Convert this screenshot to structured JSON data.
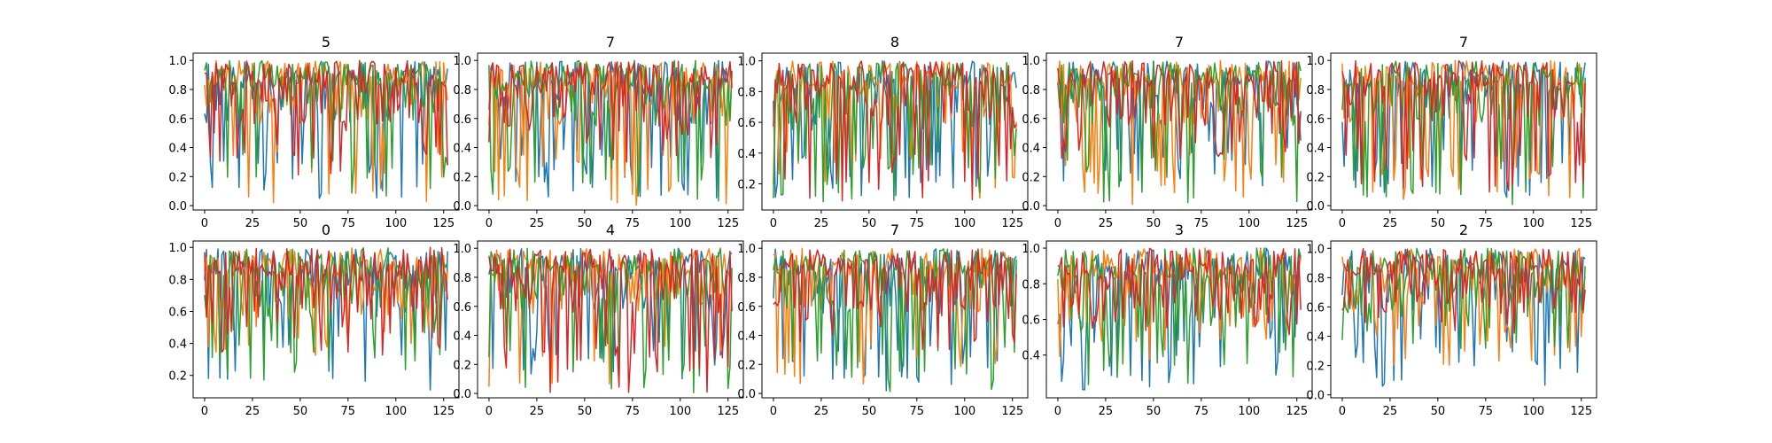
{
  "figure": {
    "background": "#ffffff"
  },
  "series_colors": [
    "#1f77b4",
    "#ff7f0e",
    "#2ca02c",
    "#d62728"
  ],
  "chart_data": [
    {
      "type": "line",
      "title": "5",
      "xlim": [
        -6,
        133
      ],
      "ylim": [
        -0.03,
        1.05
      ],
      "xticks": [
        0,
        25,
        50,
        75,
        100,
        125
      ],
      "xtick_labels": [
        "0",
        "25",
        "50",
        "75",
        "100",
        "125"
      ],
      "yticks": [
        0.0,
        0.2,
        0.4,
        0.6,
        0.8,
        1.0
      ],
      "ytick_labels": [
        "0.0",
        "0.2",
        "0.4",
        "0.6",
        "0.8",
        "1.0"
      ],
      "n_points": 128,
      "n_series": 4,
      "series_min": [
        0.05,
        0.02,
        0.02,
        0.2
      ],
      "seed": 11
    },
    {
      "type": "line",
      "title": "7",
      "xlim": [
        -6,
        133
      ],
      "ylim": [
        -0.03,
        1.05
      ],
      "xticks": [
        0,
        25,
        50,
        75,
        100,
        125
      ],
      "xtick_labels": [
        "0",
        "25",
        "50",
        "75",
        "100",
        "125"
      ],
      "yticks": [
        0.0,
        0.2,
        0.4,
        0.6,
        0.8,
        1.0
      ],
      "ytick_labels": [
        "0.0",
        "0.2",
        "0.4",
        "0.6",
        "0.8",
        "1.0"
      ],
      "n_points": 128,
      "n_series": 4,
      "series_min": [
        0.05,
        0.0,
        0.0,
        0.3
      ],
      "seed": 23
    },
    {
      "type": "line",
      "title": "8",
      "xlim": [
        -6,
        133
      ],
      "ylim": [
        0.03,
        1.05
      ],
      "xticks": [
        0,
        25,
        50,
        75,
        100,
        125
      ],
      "xtick_labels": [
        "0",
        "25",
        "50",
        "75",
        "100",
        "125"
      ],
      "yticks": [
        0.2,
        0.4,
        0.6,
        0.8,
        1.0
      ],
      "ytick_labels": [
        "0.2",
        "0.4",
        "0.6",
        "0.8",
        "1.0"
      ],
      "n_points": 128,
      "n_series": 4,
      "series_min": [
        0.1,
        0.1,
        0.08,
        0.08
      ],
      "seed": 37
    },
    {
      "type": "line",
      "title": "7",
      "xlim": [
        -6,
        133
      ],
      "ylim": [
        -0.03,
        1.05
      ],
      "xticks": [
        0,
        25,
        50,
        75,
        100,
        125
      ],
      "xtick_labels": [
        "0",
        "25",
        "50",
        "75",
        "100",
        "125"
      ],
      "yticks": [
        0.0,
        0.2,
        0.4,
        0.6,
        0.8,
        1.0
      ],
      "ytick_labels": [
        "0.0",
        "0.2",
        "0.4",
        "0.6",
        "0.8",
        "1.0"
      ],
      "n_points": 128,
      "n_series": 4,
      "series_min": [
        0.1,
        0.0,
        0.0,
        0.3
      ],
      "seed": 41
    },
    {
      "type": "line",
      "title": "7",
      "xlim": [
        -6,
        133
      ],
      "ylim": [
        -0.03,
        1.05
      ],
      "xticks": [
        0,
        25,
        50,
        75,
        100,
        125
      ],
      "xtick_labels": [
        "0",
        "25",
        "50",
        "75",
        "100",
        "125"
      ],
      "yticks": [
        0.0,
        0.2,
        0.4,
        0.6,
        0.8,
        1.0
      ],
      "ytick_labels": [
        "0.0",
        "0.2",
        "0.4",
        "0.6",
        "0.8",
        "1.0"
      ],
      "n_points": 128,
      "n_series": 4,
      "series_min": [
        0.05,
        0.0,
        0.0,
        0.05
      ],
      "seed": 53
    },
    {
      "type": "line",
      "title": "0",
      "xlim": [
        -6,
        133
      ],
      "ylim": [
        0.06,
        1.04
      ],
      "xticks": [
        0,
        25,
        50,
        75,
        100,
        125
      ],
      "xtick_labels": [
        "0",
        "25",
        "50",
        "75",
        "100",
        "125"
      ],
      "yticks": [
        0.2,
        0.4,
        0.6,
        0.8,
        1.0
      ],
      "ytick_labels": [
        "0.2",
        "0.4",
        "0.6",
        "0.8",
        "1.0"
      ],
      "n_points": 128,
      "n_series": 4,
      "series_min": [
        0.1,
        0.3,
        0.15,
        0.3
      ],
      "seed": 61
    },
    {
      "type": "line",
      "title": "4",
      "xlim": [
        -6,
        133
      ],
      "ylim": [
        -0.03,
        1.05
      ],
      "xticks": [
        0,
        25,
        50,
        75,
        100,
        125
      ],
      "xtick_labels": [
        "0",
        "25",
        "50",
        "75",
        "100",
        "125"
      ],
      "yticks": [
        0.0,
        0.2,
        0.4,
        0.6,
        0.8,
        1.0
      ],
      "ytick_labels": [
        "0.0",
        "0.2",
        "0.4",
        "0.6",
        "0.8",
        "1.0"
      ],
      "n_points": 128,
      "n_series": 4,
      "series_min": [
        0.1,
        0.0,
        0.0,
        0.0
      ],
      "seed": 73
    },
    {
      "type": "line",
      "title": "7",
      "xlim": [
        -6,
        133
      ],
      "ylim": [
        -0.03,
        1.05
      ],
      "xticks": [
        0,
        25,
        50,
        75,
        100,
        125
      ],
      "xtick_labels": [
        "0",
        "25",
        "50",
        "75",
        "100",
        "125"
      ],
      "yticks": [
        0.0,
        0.2,
        0.4,
        0.6,
        0.8,
        1.0
      ],
      "ytick_labels": [
        "0.0",
        "0.2",
        "0.4",
        "0.6",
        "0.8",
        "1.0"
      ],
      "n_points": 128,
      "n_series": 4,
      "series_min": [
        0.0,
        0.0,
        0.0,
        0.3
      ],
      "seed": 89
    },
    {
      "type": "line",
      "title": "3",
      "xlim": [
        -6,
        133
      ],
      "ylim": [
        0.16,
        1.04
      ],
      "xticks": [
        0,
        25,
        50,
        75,
        100,
        125
      ],
      "xtick_labels": [
        "0",
        "25",
        "50",
        "75",
        "100",
        "125"
      ],
      "yticks": [
        0.4,
        0.6,
        0.8,
        1.0
      ],
      "ytick_labels": [
        "0.4",
        "0.6",
        "0.8",
        "1.0"
      ],
      "n_points": 128,
      "n_series": 4,
      "series_min": [
        0.2,
        0.3,
        0.2,
        0.5
      ],
      "seed": 97
    },
    {
      "type": "line",
      "title": "2",
      "xlim": [
        -6,
        133
      ],
      "ylim": [
        -0.02,
        1.05
      ],
      "xticks": [
        0,
        25,
        50,
        75,
        100,
        125
      ],
      "xtick_labels": [
        "0",
        "25",
        "50",
        "75",
        "100",
        "125"
      ],
      "yticks": [
        0.0,
        0.2,
        0.4,
        0.6,
        0.8,
        1.0
      ],
      "ytick_labels": [
        "0.0",
        "0.2",
        "0.4",
        "0.6",
        "0.8",
        "1.0"
      ],
      "n_points": 128,
      "n_series": 4,
      "series_min": [
        0.05,
        0.2,
        0.3,
        0.4
      ],
      "seed": 101
    }
  ]
}
